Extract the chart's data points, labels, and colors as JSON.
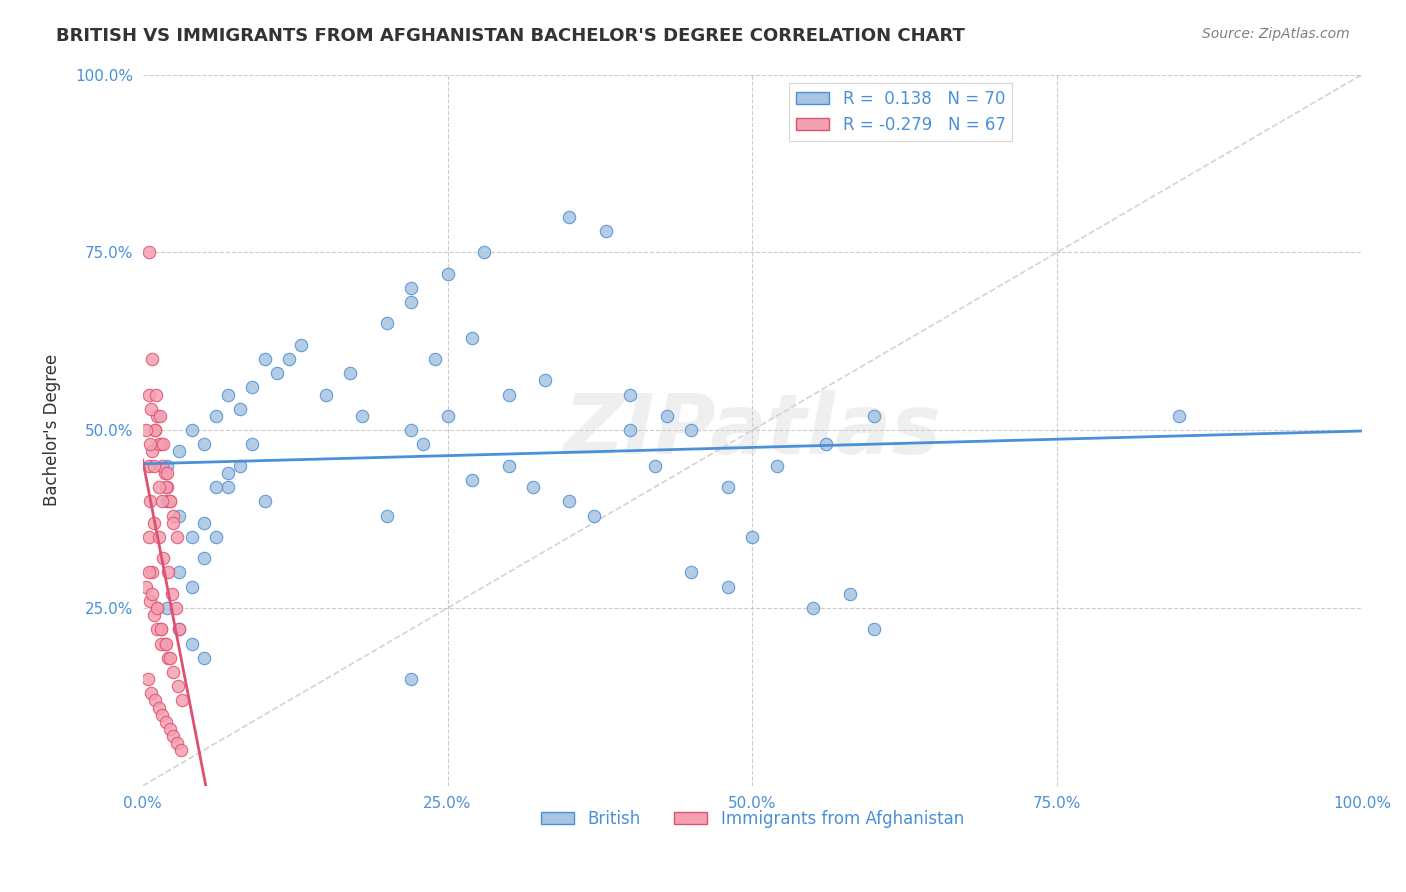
{
  "title": "BRITISH VS IMMIGRANTS FROM AFGHANISTAN BACHELOR'S DEGREE CORRELATION CHART",
  "source": "Source: ZipAtlas.com",
  "ylabel": "Bachelor's Degree",
  "xlabel": "",
  "watermark": "ZIPatlas",
  "british_R": 0.138,
  "british_N": 70,
  "afghan_R": -0.279,
  "afghan_N": 67,
  "british_color": "#a8c4e0",
  "afghan_color": "#f4a0b0",
  "british_line_color": "#4a90d9",
  "afghan_line_color": "#e05070",
  "diagonal_color": "#c0c0c0",
  "background_color": "#ffffff",
  "grid_color": "#cccccc",
  "title_color": "#333333",
  "axis_label_color": "#4a90d9",
  "legend_text_color": "#4a90d9",
  "british_scatter_x": [
    0.02,
    0.03,
    0.04,
    0.05,
    0.06,
    0.07,
    0.08,
    0.09,
    0.1,
    0.11,
    0.02,
    0.03,
    0.04,
    0.05,
    0.06,
    0.07,
    0.03,
    0.04,
    0.05,
    0.06,
    0.02,
    0.03,
    0.04,
    0.05,
    0.07,
    0.08,
    0.09,
    0.1,
    0.12,
    0.13,
    0.15,
    0.17,
    0.18,
    0.2,
    0.22,
    0.23,
    0.25,
    0.27,
    0.3,
    0.32,
    0.35,
    0.37,
    0.4,
    0.42,
    0.45,
    0.48,
    0.5,
    0.55,
    0.58,
    0.6,
    0.2,
    0.22,
    0.24,
    0.27,
    0.3,
    0.33,
    0.22,
    0.25,
    0.28,
    0.35,
    0.38,
    0.4,
    0.43,
    0.45,
    0.48,
    0.52,
    0.56,
    0.6,
    0.85,
    0.22
  ],
  "british_scatter_y": [
    0.45,
    0.47,
    0.5,
    0.48,
    0.52,
    0.55,
    0.53,
    0.56,
    0.6,
    0.58,
    0.4,
    0.38,
    0.35,
    0.37,
    0.42,
    0.44,
    0.3,
    0.28,
    0.32,
    0.35,
    0.25,
    0.22,
    0.2,
    0.18,
    0.42,
    0.45,
    0.48,
    0.4,
    0.6,
    0.62,
    0.55,
    0.58,
    0.52,
    0.38,
    0.5,
    0.48,
    0.52,
    0.43,
    0.45,
    0.42,
    0.4,
    0.38,
    0.5,
    0.45,
    0.3,
    0.28,
    0.35,
    0.25,
    0.27,
    0.22,
    0.65,
    0.68,
    0.6,
    0.63,
    0.55,
    0.57,
    0.7,
    0.72,
    0.75,
    0.8,
    0.78,
    0.55,
    0.52,
    0.5,
    0.42,
    0.45,
    0.48,
    0.52,
    0.52,
    0.15
  ],
  "afghan_scatter_x": [
    0.005,
    0.008,
    0.01,
    0.012,
    0.015,
    0.018,
    0.02,
    0.022,
    0.025,
    0.005,
    0.007,
    0.01,
    0.013,
    0.016,
    0.019,
    0.022,
    0.025,
    0.028,
    0.005,
    0.008,
    0.011,
    0.014,
    0.017,
    0.02,
    0.005,
    0.008,
    0.012,
    0.015,
    0.018,
    0.021,
    0.003,
    0.006,
    0.009,
    0.012,
    0.015,
    0.004,
    0.007,
    0.01,
    0.013,
    0.016,
    0.019,
    0.022,
    0.025,
    0.028,
    0.031,
    0.005,
    0.008,
    0.012,
    0.015,
    0.019,
    0.022,
    0.025,
    0.029,
    0.032,
    0.006,
    0.009,
    0.013,
    0.017,
    0.021,
    0.024,
    0.027,
    0.03,
    0.003,
    0.006,
    0.009,
    0.013,
    0.016
  ],
  "afghan_scatter_y": [
    0.45,
    0.47,
    0.5,
    0.52,
    0.48,
    0.44,
    0.42,
    0.4,
    0.38,
    0.55,
    0.53,
    0.5,
    0.48,
    0.45,
    0.42,
    0.4,
    0.37,
    0.35,
    0.75,
    0.6,
    0.55,
    0.52,
    0.48,
    0.44,
    0.35,
    0.3,
    0.25,
    0.22,
    0.2,
    0.18,
    0.28,
    0.26,
    0.24,
    0.22,
    0.2,
    0.15,
    0.13,
    0.12,
    0.11,
    0.1,
    0.09,
    0.08,
    0.07,
    0.06,
    0.05,
    0.3,
    0.27,
    0.25,
    0.22,
    0.2,
    0.18,
    0.16,
    0.14,
    0.12,
    0.4,
    0.37,
    0.35,
    0.32,
    0.3,
    0.27,
    0.25,
    0.22,
    0.5,
    0.48,
    0.45,
    0.42,
    0.4
  ]
}
